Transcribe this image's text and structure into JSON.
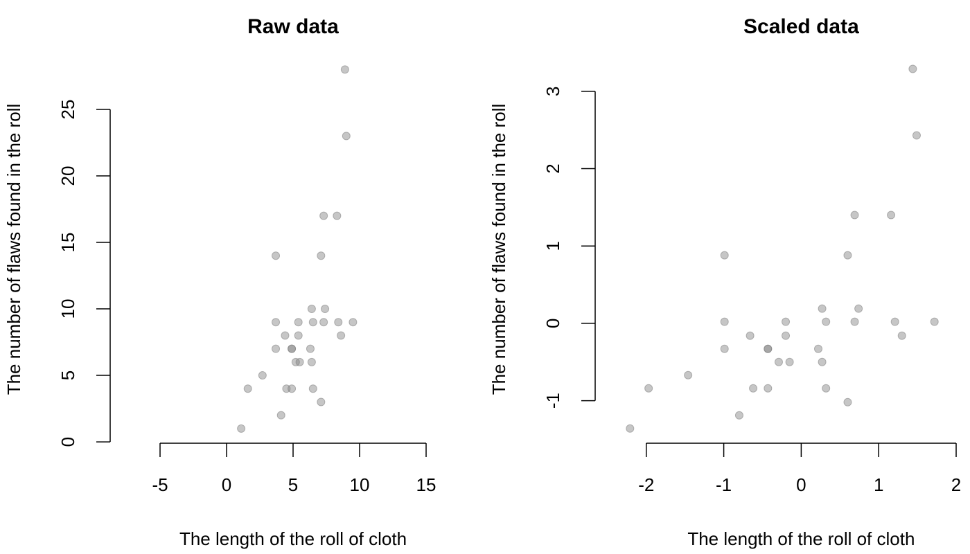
{
  "chart_data": [
    {
      "type": "scatter",
      "title": "Raw data",
      "x_label": "The length of the roll of cloth",
      "y_label": "The number of flaws found in the roll",
      "x": [
        8.9,
        9.0,
        7.3,
        8.3,
        3.7,
        7.1,
        6.4,
        7.4,
        3.7,
        5.4,
        6.5,
        7.3,
        8.4,
        9.5,
        4.4,
        5.4,
        8.6,
        3.7,
        4.9,
        4.9,
        6.3,
        5.2,
        5.5,
        6.4,
        2.7,
        1.6,
        4.5,
        4.9,
        6.5,
        7.1,
        4.1,
        1.1
      ],
      "y": [
        28,
        23,
        17,
        17,
        14,
        14,
        10,
        10,
        9,
        9,
        9,
        9,
        9,
        9,
        8,
        8,
        8,
        7,
        7,
        7,
        7,
        6,
        6,
        6,
        5,
        4,
        4,
        4,
        4,
        3,
        2,
        1
      ],
      "color": "#808080",
      "xlim": [
        -8.75,
        15
      ],
      "xticks": [
        -5,
        0,
        5,
        10,
        15
      ],
      "ylim": [
        -0.1,
        28.54
      ],
      "yticks": [
        0,
        5,
        10,
        15,
        20,
        25
      ]
    },
    {
      "type": "scatter",
      "title": "Scaled data",
      "x_label": "The length of the roll of cloth",
      "y_label": "The number of flaws found in the roll",
      "x": [
        1.44,
        1.49,
        0.69,
        1.16,
        -0.99,
        0.6,
        0.27,
        0.74,
        -0.99,
        -0.2,
        0.32,
        0.69,
        1.21,
        1.72,
        -0.66,
        -0.2,
        1.3,
        -0.99,
        -0.43,
        -0.43,
        0.22,
        -0.29,
        -0.15,
        0.27,
        -1.46,
        -1.97,
        -0.62,
        -0.43,
        0.32,
        0.6,
        -0.8,
        -2.21
      ],
      "y": [
        3.29,
        2.43,
        1.4,
        1.4,
        0.88,
        0.88,
        0.19,
        0.19,
        0.02,
        0.02,
        0.02,
        0.02,
        0.02,
        0.02,
        -0.16,
        -0.16,
        -0.16,
        -0.33,
        -0.33,
        -0.33,
        -0.33,
        -0.5,
        -0.5,
        -0.5,
        -0.67,
        -0.84,
        -0.84,
        -0.84,
        -0.84,
        -1.02,
        -1.19,
        -1.36
      ],
      "color": "#808080",
      "xlim": [
        -2.66,
        2
      ],
      "xticks": [
        -2,
        -1,
        0,
        1,
        2
      ],
      "ylim": [
        -1.55,
        3.375
      ],
      "yticks": [
        -1,
        0,
        1,
        2,
        3
      ]
    }
  ]
}
